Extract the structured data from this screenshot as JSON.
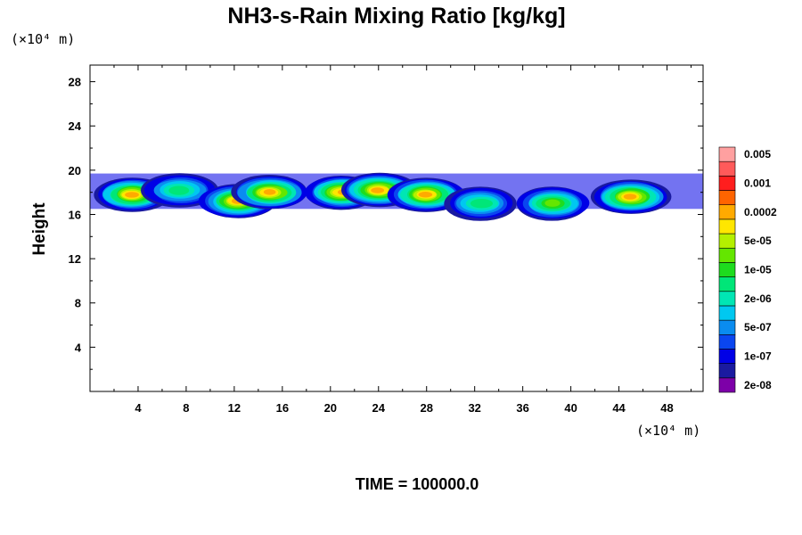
{
  "chart_data": {
    "type": "heatmap",
    "title": "NH3-s-Rain Mixing Ratio [kg/kg]",
    "ylabel": "Height",
    "x_unit": "(×10⁴ m)",
    "y_unit": "(×10⁴ m)",
    "xlim": [
      0,
      51
    ],
    "ylim": [
      0,
      29.5
    ],
    "xticks": [
      4,
      8,
      12,
      16,
      20,
      24,
      28,
      32,
      36,
      40,
      44,
      48
    ],
    "yticks": [
      4,
      8,
      12,
      16,
      20,
      24,
      28
    ],
    "time_label": "TIME = 100000.0",
    "colorbar": {
      "colors": [
        "#7d00a8",
        "#1a1aa0",
        "#0000e6",
        "#0a46f0",
        "#0a8cf0",
        "#00c8f0",
        "#00e6b4",
        "#00e678",
        "#1edc1e",
        "#64e600",
        "#b4f000",
        "#ffe600",
        "#ffaa00",
        "#ff6400",
        "#ff1e1e",
        "#ff5a5a",
        "#ffa0a0"
      ],
      "labels": [
        "2e-08",
        "1e-07",
        "5e-07",
        "2e-06",
        "1e-05",
        "5e-05",
        "0.0002",
        "0.001",
        "0.005"
      ]
    },
    "cloud_band": {
      "y_range": [
        16.5,
        19.7
      ],
      "cells": [
        {
          "x": 3.5,
          "y": 17.8,
          "peak": 0.0002
        },
        {
          "x": 7.5,
          "y": 18.2,
          "peak": 5e-06
        },
        {
          "x": 12.3,
          "y": 17.2,
          "peak": 0.0002
        },
        {
          "x": 15.0,
          "y": 18.0,
          "peak": 0.0002
        },
        {
          "x": 21.0,
          "y": 18.0,
          "peak": 0.0002
        },
        {
          "x": 24.0,
          "y": 18.2,
          "peak": 0.0002
        },
        {
          "x": 28.0,
          "y": 17.8,
          "peak": 0.0002
        },
        {
          "x": 32.5,
          "y": 17.0,
          "peak": 5e-06
        },
        {
          "x": 38.5,
          "y": 17.0,
          "peak": 2e-05
        },
        {
          "x": 45.0,
          "y": 17.6,
          "peak": 0.0002
        }
      ]
    }
  }
}
